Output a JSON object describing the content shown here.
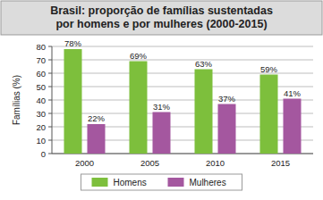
{
  "chart_data": {
    "type": "bar",
    "title": "Brasil: proporção de famílias sustentadas\npor homens e por mulheres (2000-2015)",
    "y_label": "Famílias (%)",
    "categories": [
      "2000",
      "2005",
      "2010",
      "2015"
    ],
    "series": [
      {
        "name": "Homens",
        "color": "#7dbf3c",
        "values": [
          78,
          69,
          63,
          59
        ],
        "value_labels": [
          "78%",
          "69%",
          "63%",
          "59%"
        ]
      },
      {
        "name": "Mulheres",
        "color": "#a4579f",
        "values": [
          22,
          31,
          37,
          41
        ],
        "value_labels": [
          "22%",
          "31%",
          "37%",
          "41%"
        ]
      }
    ],
    "ylim": [
      0,
      80
    ],
    "yticks": [
      0,
      10,
      20,
      30,
      40,
      50,
      60,
      70,
      80
    ],
    "grid": true,
    "legend": "bottom",
    "data_labels": true
  }
}
